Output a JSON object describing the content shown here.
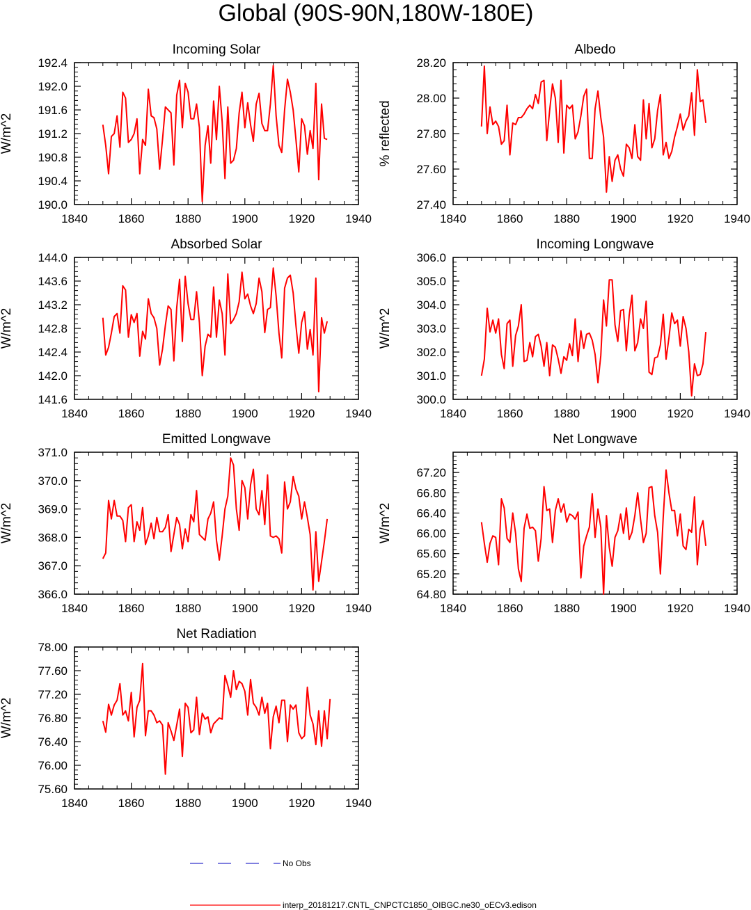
{
  "figure": {
    "title": "Global (90S-90N,180W-180E)"
  },
  "chart_data": [
    {
      "type": "line",
      "title": "Incoming Solar",
      "ylabel": "W/m^2",
      "xlabel": "",
      "xlim": [
        1840,
        1940
      ],
      "xticks": [
        1840,
        1860,
        1880,
        1900,
        1920,
        1940
      ],
      "xtick_labels": [
        "1840",
        "1860",
        "1880",
        "1900",
        "1920",
        "1940"
      ],
      "ylim": [
        190.0,
        192.4
      ],
      "yticks": [
        190.0,
        190.4,
        190.8,
        191.2,
        191.6,
        192.0,
        192.4
      ],
      "ytick_labels": [
        "190.0",
        "190.4",
        "190.8",
        "191.2",
        "191.6",
        "192.0",
        "192.4"
      ],
      "series": [
        {
          "name": "interp_20181217.CNTL_CNPCTC1850_OIBGC.ne30_oECv3.edison",
          "color": "#ff0000",
          "x_start": 1850,
          "x_step": 1,
          "values": [
            191.35,
            191.0,
            190.52,
            191.15,
            191.2,
            191.5,
            190.97,
            191.9,
            191.8,
            191.05,
            191.1,
            191.2,
            191.45,
            190.52,
            191.1,
            191.0,
            191.95,
            191.5,
            191.47,
            191.28,
            190.6,
            191.1,
            191.65,
            191.6,
            191.55,
            190.67,
            191.85,
            192.1,
            191.3,
            192.05,
            191.9,
            191.45,
            191.45,
            191.7,
            191.3,
            190.05,
            191.0,
            191.33,
            190.7,
            191.75,
            191.1,
            192.0,
            191.4,
            190.44,
            191.65,
            190.7,
            190.75,
            190.95,
            191.55,
            191.9,
            191.3,
            191.72,
            191.35,
            191.07,
            191.7,
            191.88,
            191.37,
            191.25,
            191.25,
            191.7,
            192.35,
            191.5,
            191.0,
            190.88,
            191.6,
            192.12,
            191.9,
            191.6,
            191.1,
            190.55,
            191.45,
            191.33,
            190.85,
            191.25,
            190.95,
            192.05,
            190.42,
            191.7,
            191.12,
            191.1
          ]
        }
      ]
    },
    {
      "type": "line",
      "title": "Albedo",
      "ylabel": "% reflected",
      "xlabel": "",
      "xlim": [
        1840,
        1940
      ],
      "xticks": [
        1840,
        1860,
        1880,
        1900,
        1920,
        1940
      ],
      "xtick_labels": [
        "1840",
        "1860",
        "1880",
        "1900",
        "1920",
        "1940"
      ],
      "ylim": [
        27.4,
        28.2
      ],
      "yticks": [
        27.4,
        27.6,
        27.8,
        28.0,
        28.2
      ],
      "ytick_labels": [
        "27.40",
        "27.60",
        "27.80",
        "28.00",
        "28.20"
      ],
      "series": [
        {
          "name": "interp_20181217.CNTL_CNPCTC1850_OIBGC.ne30_oECv3.edison",
          "color": "#ff0000",
          "x_start": 1850,
          "x_step": 1,
          "values": [
            27.84,
            28.18,
            27.8,
            27.95,
            27.85,
            27.87,
            27.84,
            27.74,
            27.76,
            27.96,
            27.68,
            27.86,
            27.85,
            27.89,
            27.89,
            27.91,
            27.94,
            27.96,
            27.94,
            28.02,
            27.97,
            28.09,
            28.1,
            27.76,
            27.93,
            28.08,
            28.0,
            27.75,
            28.1,
            27.69,
            27.96,
            27.94,
            27.96,
            27.77,
            27.81,
            27.9,
            28.01,
            28.05,
            27.66,
            27.66,
            27.94,
            28.04,
            27.89,
            27.78,
            27.47,
            27.67,
            27.53,
            27.65,
            27.68,
            27.6,
            27.56,
            27.74,
            27.72,
            27.66,
            27.85,
            27.67,
            27.65,
            27.99,
            27.77,
            27.97,
            27.72,
            27.77,
            27.93,
            28.02,
            27.68,
            27.75,
            27.66,
            27.7,
            27.78,
            27.84,
            27.91,
            27.82,
            27.87,
            27.9,
            28.03,
            27.79,
            28.16,
            27.98,
            27.99,
            27.86
          ]
        }
      ]
    },
    {
      "type": "line",
      "title": "Absorbed Solar",
      "ylabel": "W/m^2",
      "xlabel": "",
      "xlim": [
        1840,
        1940
      ],
      "xticks": [
        1840,
        1860,
        1880,
        1900,
        1920,
        1940
      ],
      "xtick_labels": [
        "1840",
        "1860",
        "1880",
        "1900",
        "1920",
        "1940"
      ],
      "ylim": [
        141.6,
        144.0
      ],
      "yticks": [
        141.6,
        142.0,
        142.4,
        142.8,
        143.2,
        143.6,
        144.0
      ],
      "ytick_labels": [
        "141.6",
        "142.0",
        "142.4",
        "142.8",
        "143.2",
        "143.6",
        "144.0"
      ],
      "series": [
        {
          "name": "interp_20181217.CNTL_CNPCTC1850_OIBGC.ne30_oECv3.edison",
          "color": "#ff0000",
          "x_start": 1850,
          "x_step": 1,
          "values": [
            142.98,
            142.35,
            142.48,
            142.72,
            143.0,
            143.05,
            142.72,
            143.52,
            143.45,
            142.65,
            143.03,
            142.9,
            143.05,
            142.33,
            142.75,
            142.62,
            143.3,
            143.05,
            142.98,
            142.8,
            142.18,
            142.45,
            142.85,
            143.18,
            143.12,
            142.25,
            143.15,
            143.63,
            142.58,
            143.68,
            143.22,
            142.95,
            142.95,
            143.42,
            142.9,
            142.0,
            142.5,
            142.7,
            142.65,
            143.5,
            142.65,
            143.28,
            143.05,
            142.35,
            143.72,
            142.88,
            142.95,
            143.05,
            143.25,
            143.75,
            143.3,
            143.38,
            143.18,
            143.05,
            143.22,
            143.65,
            143.42,
            142.73,
            143.12,
            143.15,
            143.82,
            143.35,
            142.72,
            142.3,
            143.48,
            143.65,
            143.7,
            143.4,
            142.85,
            142.38,
            142.9,
            143.08,
            142.45,
            142.78,
            142.35,
            143.65,
            141.73,
            142.98,
            142.72,
            142.92
          ]
        }
      ]
    },
    {
      "type": "line",
      "title": "Incoming Longwave",
      "ylabel": "W/m^2",
      "xlabel": "",
      "xlim": [
        1840,
        1940
      ],
      "xticks": [
        1840,
        1860,
        1880,
        1900,
        1920,
        1940
      ],
      "xtick_labels": [
        "1840",
        "1860",
        "1880",
        "1900",
        "1920",
        "1940"
      ],
      "ylim": [
        300.0,
        306.0
      ],
      "yticks": [
        300.0,
        301.0,
        302.0,
        303.0,
        304.0,
        305.0,
        306.0
      ],
      "ytick_labels": [
        "300.0",
        "301.0",
        "302.0",
        "303.0",
        "304.0",
        "305.0",
        "306.0"
      ],
      "series": [
        {
          "name": "interp_20181217.CNTL_CNPCTC1850_OIBGC.ne30_oECv3.edison",
          "color": "#ff0000",
          "x_start": 1850,
          "x_step": 1,
          "values": [
            301.0,
            301.7,
            303.85,
            302.85,
            303.35,
            302.8,
            303.4,
            301.9,
            301.3,
            303.2,
            303.35,
            301.4,
            302.7,
            303.1,
            304.0,
            301.6,
            301.65,
            302.4,
            301.8,
            302.65,
            302.75,
            302.25,
            301.4,
            302.4,
            301.0,
            302.3,
            302.2,
            301.7,
            301.1,
            301.8,
            301.65,
            302.35,
            301.85,
            303.4,
            301.6,
            302.9,
            302.15,
            302.75,
            302.8,
            302.5,
            301.9,
            300.7,
            301.85,
            304.2,
            303.1,
            305.05,
            305.05,
            303.15,
            302.45,
            303.75,
            303.8,
            302.05,
            303.55,
            304.4,
            302.05,
            302.4,
            303.4,
            303.0,
            304.15,
            301.15,
            301.05,
            301.75,
            301.8,
            302.3,
            303.6,
            301.7,
            302.6,
            303.65,
            303.2,
            303.35,
            302.25,
            303.5,
            303.0,
            302.0,
            300.15,
            301.5,
            301.0,
            301.05,
            301.5,
            302.85
          ]
        }
      ]
    },
    {
      "type": "line",
      "title": "Emitted Longwave",
      "ylabel": "W/m^2",
      "xlabel": "",
      "xlim": [
        1840,
        1940
      ],
      "xticks": [
        1840,
        1860,
        1880,
        1900,
        1920,
        1940
      ],
      "xtick_labels": [
        "1840",
        "1860",
        "1880",
        "1900",
        "1920",
        "1940"
      ],
      "ylim": [
        366.0,
        371.0
      ],
      "yticks": [
        366.0,
        367.0,
        368.0,
        369.0,
        370.0,
        371.0
      ],
      "ytick_labels": [
        "366.0",
        "367.0",
        "368.0",
        "369.0",
        "370.0",
        "371.0"
      ],
      "series": [
        {
          "name": "interp_20181217.CNTL_CNPCTC1850_OIBGC.ne30_oECv3.edison",
          "color": "#ff0000",
          "x_start": 1850,
          "x_step": 1,
          "values": [
            367.25,
            367.45,
            369.3,
            368.65,
            369.3,
            368.75,
            368.75,
            368.6,
            367.85,
            369.05,
            369.15,
            367.85,
            368.55,
            368.25,
            369.05,
            367.75,
            368.05,
            368.5,
            367.95,
            368.7,
            368.2,
            368.2,
            368.35,
            368.8,
            367.5,
            368.1,
            368.7,
            368.45,
            367.6,
            368.3,
            367.85,
            368.8,
            368.55,
            369.65,
            368.1,
            368.0,
            367.9,
            368.65,
            368.85,
            369.25,
            367.9,
            367.2,
            368.05,
            369.0,
            369.45,
            370.8,
            370.55,
            369.0,
            368.25,
            370.0,
            369.75,
            368.65,
            369.85,
            370.4,
            369.0,
            368.8,
            369.65,
            368.45,
            370.2,
            368.05,
            368.0,
            368.05,
            367.95,
            367.45,
            369.95,
            369.0,
            369.25,
            370.15,
            369.7,
            369.45,
            368.65,
            369.25,
            368.7,
            368.1,
            366.15,
            368.2,
            366.45,
            367.15,
            367.85,
            368.65
          ]
        }
      ]
    },
    {
      "type": "line",
      "title": "Net Longwave",
      "ylabel": "W/m^2",
      "xlabel": "",
      "xlim": [
        1840,
        1940
      ],
      "xticks": [
        1840,
        1860,
        1880,
        1900,
        1920,
        1940
      ],
      "xtick_labels": [
        "1840",
        "1860",
        "1880",
        "1900",
        "1920",
        "1940"
      ],
      "ylim": [
        64.8,
        67.6
      ],
      "yticks": [
        64.8,
        65.2,
        65.6,
        66.0,
        66.4,
        66.8,
        67.2
      ],
      "ytick_labels": [
        "64.80",
        "65.20",
        "65.60",
        "66.00",
        "66.40",
        "66.80",
        "67.20"
      ],
      "series": [
        {
          "name": "interp_20181217.CNTL_CNPCTC1850_OIBGC.ne30_oECv3.edison",
          "color": "#ff0000",
          "x_start": 1850,
          "x_step": 1,
          "values": [
            66.22,
            65.8,
            65.43,
            65.8,
            65.95,
            65.92,
            65.38,
            66.68,
            66.5,
            65.9,
            65.82,
            66.4,
            66.0,
            65.3,
            65.05,
            66.1,
            66.38,
            66.1,
            66.12,
            66.05,
            65.45,
            65.9,
            66.92,
            66.45,
            66.48,
            65.82,
            66.45,
            66.68,
            66.42,
            66.58,
            66.22,
            66.38,
            66.35,
            66.28,
            66.42,
            65.12,
            65.75,
            65.95,
            66.12,
            66.78,
            65.92,
            66.48,
            66.12,
            64.8,
            66.35,
            65.72,
            65.35,
            65.92,
            66.05,
            66.38,
            66.0,
            66.5,
            65.88,
            66.02,
            66.35,
            66.8,
            66.28,
            65.82,
            66.0,
            66.9,
            66.92,
            66.35,
            66.02,
            65.2,
            66.32,
            67.25,
            66.8,
            66.45,
            66.45,
            65.95,
            66.38,
            65.75,
            65.68,
            66.08,
            66.02,
            66.72,
            65.38,
            66.08,
            66.25,
            65.75
          ]
        }
      ]
    },
    {
      "type": "line",
      "title": "Net Radiation",
      "ylabel": "W/m^2",
      "xlabel": "",
      "xlim": [
        1840,
        1940
      ],
      "xticks": [
        1840,
        1860,
        1880,
        1900,
        1920,
        1940
      ],
      "xtick_labels": [
        "1840",
        "1860",
        "1880",
        "1900",
        "1920",
        "1940"
      ],
      "ylim": [
        75.6,
        78.0
      ],
      "yticks": [
        75.6,
        76.0,
        76.4,
        76.8,
        77.2,
        77.6,
        78.0
      ],
      "ytick_labels": [
        "75.60",
        "76.00",
        "76.40",
        "76.80",
        "77.20",
        "77.60",
        "78.00"
      ],
      "series": [
        {
          "name": "interp_20181217.CNTL_CNPCTC1850_OIBGC.ne30_oECv3.edison",
          "color": "#ff0000",
          "x_start": 1850,
          "x_step": 1,
          "values": [
            76.75,
            76.56,
            77.03,
            76.85,
            77.02,
            77.1,
            77.38,
            76.85,
            76.92,
            76.75,
            77.23,
            76.48,
            76.98,
            77.1,
            77.72,
            76.5,
            76.92,
            76.92,
            76.85,
            76.72,
            76.75,
            76.68,
            75.85,
            76.72,
            76.58,
            76.42,
            76.68,
            76.95,
            76.15,
            77.05,
            76.98,
            76.55,
            76.6,
            77.15,
            76.52,
            76.88,
            76.78,
            76.82,
            76.55,
            76.7,
            76.75,
            76.8,
            76.78,
            77.52,
            77.35,
            77.15,
            77.6,
            77.28,
            77.42,
            77.38,
            77.25,
            76.85,
            77.45,
            77.05,
            76.98,
            76.85,
            77.15,
            76.88,
            77.05,
            76.28,
            76.82,
            77.0,
            76.72,
            77.1,
            77.1,
            76.4,
            77.02,
            76.95,
            77.02,
            76.55,
            76.45,
            76.5,
            77.32,
            76.85,
            76.7,
            76.35,
            76.92,
            76.32,
            76.92,
            76.45,
            77.12
          ]
        }
      ]
    }
  ],
  "legend": {
    "entries": [
      {
        "label": "No Obs",
        "color": "#3333cc",
        "style": "dashed"
      },
      {
        "label": "interp_20181217.CNTL_CNPCTC1850_OIBGC.ne30_oECv3.edison",
        "color": "#ff0000",
        "style": "solid"
      }
    ]
  }
}
